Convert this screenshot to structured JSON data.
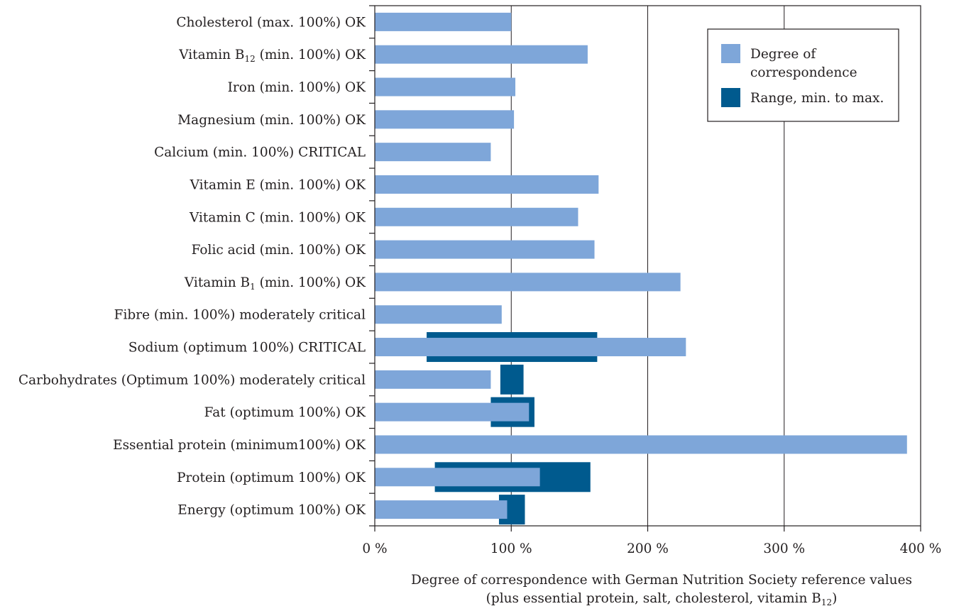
{
  "chart_data": {
    "type": "bar",
    "orientation": "horizontal",
    "categories": [
      {
        "parts": [
          "Cholesterol (max. 100%) OK"
        ]
      },
      {
        "parts": [
          "Vitamin B",
          "12",
          " (min. 100%) OK"
        ]
      },
      {
        "parts": [
          "Iron (min. 100%) OK"
        ]
      },
      {
        "parts": [
          "Magnesium (min. 100%) OK"
        ]
      },
      {
        "parts": [
          "Calcium (min. 100%) CRITICAL"
        ]
      },
      {
        "parts": [
          "Vitamin E (min. 100%) OK"
        ]
      },
      {
        "parts": [
          "Vitamin C (min. 100%) OK"
        ]
      },
      {
        "parts": [
          "Folic acid (min. 100%) OK"
        ]
      },
      {
        "parts": [
          "Vitamin B",
          "1",
          " (min. 100%) OK"
        ]
      },
      {
        "parts": [
          "Fibre (min. 100%) moderately critical"
        ]
      },
      {
        "parts": [
          "Sodium (optimum 100%) CRITICAL"
        ]
      },
      {
        "parts": [
          "Carbohydrates (Optimum 100%) moderately critical"
        ]
      },
      {
        "parts": [
          "Fat (optimum 100%) OK"
        ]
      },
      {
        "parts": [
          "Essential protein (minimum100%) OK"
        ]
      },
      {
        "parts": [
          "Protein (optimum 100%) OK"
        ]
      },
      {
        "parts": [
          "Energy (optimum 100%) OK"
        ]
      }
    ],
    "series": [
      {
        "name": "Degree of correspondence",
        "color": "#7ea6d9",
        "values": [
          100,
          156,
          103,
          102,
          85,
          164,
          149,
          161,
          224,
          93,
          228,
          85,
          113,
          390,
          121,
          97
        ]
      },
      {
        "name": "Range, min. to max.",
        "color": "#005a8e",
        "ranges": [
          null,
          null,
          null,
          null,
          null,
          null,
          null,
          null,
          null,
          null,
          [
            38,
            163
          ],
          [
            92,
            109
          ],
          [
            85,
            117
          ],
          null,
          [
            44,
            158
          ],
          [
            91,
            110
          ]
        ]
      }
    ],
    "xlim": [
      0,
      400
    ],
    "xticks": [
      "0 %",
      "100 %",
      "200 %",
      "300 %",
      "400 %"
    ],
    "xtick_values": [
      0,
      100,
      200,
      300,
      400
    ],
    "xlabel_lines": [
      {
        "parts": [
          "Degree of correspondence with German Nutrition Society reference values"
        ]
      },
      {
        "parts": [
          "(plus essential protein, salt, cholesterol, vitamin B",
          "12",
          ")"
        ]
      }
    ],
    "legend": {
      "placement": "top-right",
      "entries": [
        {
          "lines": [
            "Degree of",
            "correspondence"
          ],
          "color": "#7ea6d9"
        },
        {
          "lines": [
            "Range, min. to max."
          ],
          "color": "#005a8e"
        }
      ]
    },
    "grid": "vertical"
  }
}
